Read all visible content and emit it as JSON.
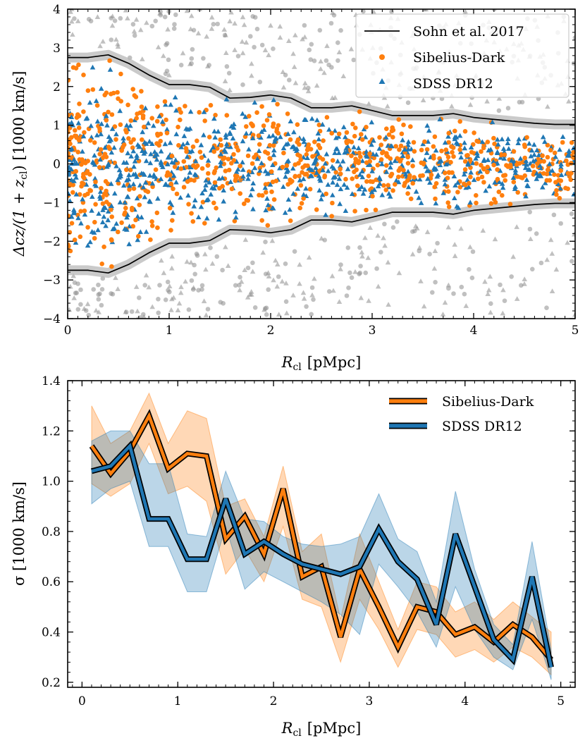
{
  "chart_data": [
    {
      "type": "scatter",
      "xlabel_main": "R",
      "xlabel_sub": "cl",
      "xlabel_unit": "[pMpc]",
      "ylabel": "Δcz/(1 + z",
      "ylabel_sub": "cl",
      "ylabel_tail": ") [1000 km/s]",
      "xlim": [
        0,
        5
      ],
      "ylim": [
        -4,
        4
      ],
      "xticks": [
        0,
        1,
        2,
        3,
        4,
        5
      ],
      "yticks": [
        -4,
        -3,
        -2,
        -1,
        0,
        1,
        2,
        3,
        4
      ],
      "legend": [
        {
          "label": "Sohn et al. 2017",
          "color": "#000000"
        },
        {
          "label": "Sibelius-Dark",
          "color": "#ff7f0e"
        },
        {
          "label": "SDSS DR12",
          "color": "#1f77b4"
        }
      ],
      "legend_position": "top-right",
      "sohn_envelope": {
        "r": [
          0.0,
          0.2,
          0.4,
          0.6,
          0.8,
          1.0,
          1.2,
          1.4,
          1.6,
          1.8,
          2.0,
          2.2,
          2.4,
          2.6,
          2.8,
          3.0,
          3.2,
          3.4,
          3.6,
          3.8,
          4.0,
          4.2,
          4.4,
          4.6,
          4.8,
          5.0
        ],
        "upper": [
          2.75,
          2.75,
          2.82,
          2.6,
          2.3,
          2.05,
          2.05,
          1.98,
          1.7,
          1.72,
          1.78,
          1.7,
          1.45,
          1.45,
          1.5,
          1.38,
          1.25,
          1.25,
          1.25,
          1.3,
          1.2,
          1.15,
          1.1,
          1.05,
          1.02,
          1.02
        ],
        "lower": [
          -2.75,
          -2.75,
          -2.82,
          -2.6,
          -2.3,
          -2.05,
          -2.05,
          -1.98,
          -1.7,
          -1.72,
          -1.78,
          -1.7,
          -1.45,
          -1.45,
          -1.5,
          -1.38,
          -1.25,
          -1.25,
          -1.25,
          -1.3,
          -1.2,
          -1.15,
          -1.1,
          -1.05,
          -1.02,
          -1.02
        ]
      },
      "points_note": "scatter points generated procedurally"
    },
    {
      "type": "line",
      "xlabel_main": "R",
      "xlabel_sub": "cl",
      "xlabel_unit": "[pMpc]",
      "ylabel": "σ [1000 km/s]",
      "xlim": [
        -0.15,
        5.15
      ],
      "ylim": [
        0.18,
        1.4
      ],
      "xticks": [
        0,
        1,
        2,
        3,
        4,
        5
      ],
      "yticks": [
        0.2,
        0.4,
        0.6,
        0.8,
        1.0,
        1.2,
        1.4
      ],
      "ytick_labels": [
        "0.2",
        "0.4",
        "0.6",
        "0.8",
        "1.0",
        "1.2",
        "1.4"
      ],
      "x": [
        0.1,
        0.3,
        0.5,
        0.7,
        0.9,
        1.1,
        1.3,
        1.5,
        1.7,
        1.9,
        2.1,
        2.3,
        2.5,
        2.7,
        2.9,
        3.1,
        3.3,
        3.5,
        3.7,
        3.9,
        4.1,
        4.3,
        4.5,
        4.7,
        4.9
      ],
      "series": [
        {
          "name": "Sibelius-Dark",
          "color": "#ff7f0e",
          "values": [
            1.14,
            1.03,
            1.12,
            1.26,
            1.05,
            1.11,
            1.1,
            0.77,
            0.86,
            0.71,
            0.97,
            0.62,
            0.66,
            0.38,
            0.65,
            0.5,
            0.34,
            0.5,
            0.48,
            0.39,
            0.42,
            0.36,
            0.43,
            0.38,
            0.29
          ],
          "lower": [
            0.99,
            0.94,
            0.99,
            1.15,
            0.95,
            0.98,
            0.92,
            0.63,
            0.73,
            0.6,
            0.82,
            0.53,
            0.5,
            0.28,
            0.53,
            0.41,
            0.26,
            0.41,
            0.39,
            0.3,
            0.33,
            0.28,
            0.34,
            0.3,
            0.23
          ],
          "upper": [
            1.3,
            1.15,
            1.2,
            1.35,
            1.15,
            1.28,
            1.25,
            0.9,
            0.93,
            0.78,
            1.06,
            0.72,
            0.79,
            0.45,
            0.79,
            0.6,
            0.41,
            0.6,
            0.58,
            0.48,
            0.52,
            0.45,
            0.52,
            0.46,
            0.4
          ]
        },
        {
          "name": "SDSS DR12",
          "color": "#1f77b4",
          "values": [
            1.04,
            1.06,
            1.14,
            0.85,
            0.85,
            0.69,
            0.69,
            0.93,
            0.71,
            0.76,
            0.71,
            0.67,
            0.65,
            0.63,
            0.66,
            0.81,
            0.68,
            0.61,
            0.43,
            0.79,
            0.58,
            0.37,
            0.29,
            0.62,
            0.26
          ],
          "lower": [
            0.91,
            0.97,
            1.0,
            0.74,
            0.74,
            0.56,
            0.56,
            0.82,
            0.57,
            0.64,
            0.6,
            0.56,
            0.52,
            0.47,
            0.39,
            0.67,
            0.58,
            0.48,
            0.34,
            0.58,
            0.41,
            0.3,
            0.25,
            0.45,
            0.21
          ],
          "upper": [
            1.16,
            1.2,
            1.2,
            1.07,
            1.07,
            0.79,
            0.78,
            1.04,
            0.85,
            0.84,
            0.78,
            0.75,
            0.74,
            0.75,
            0.78,
            0.95,
            0.77,
            0.72,
            0.52,
            0.96,
            0.65,
            0.43,
            0.35,
            0.76,
            0.33
          ]
        }
      ],
      "legend_position": "top-right"
    }
  ]
}
